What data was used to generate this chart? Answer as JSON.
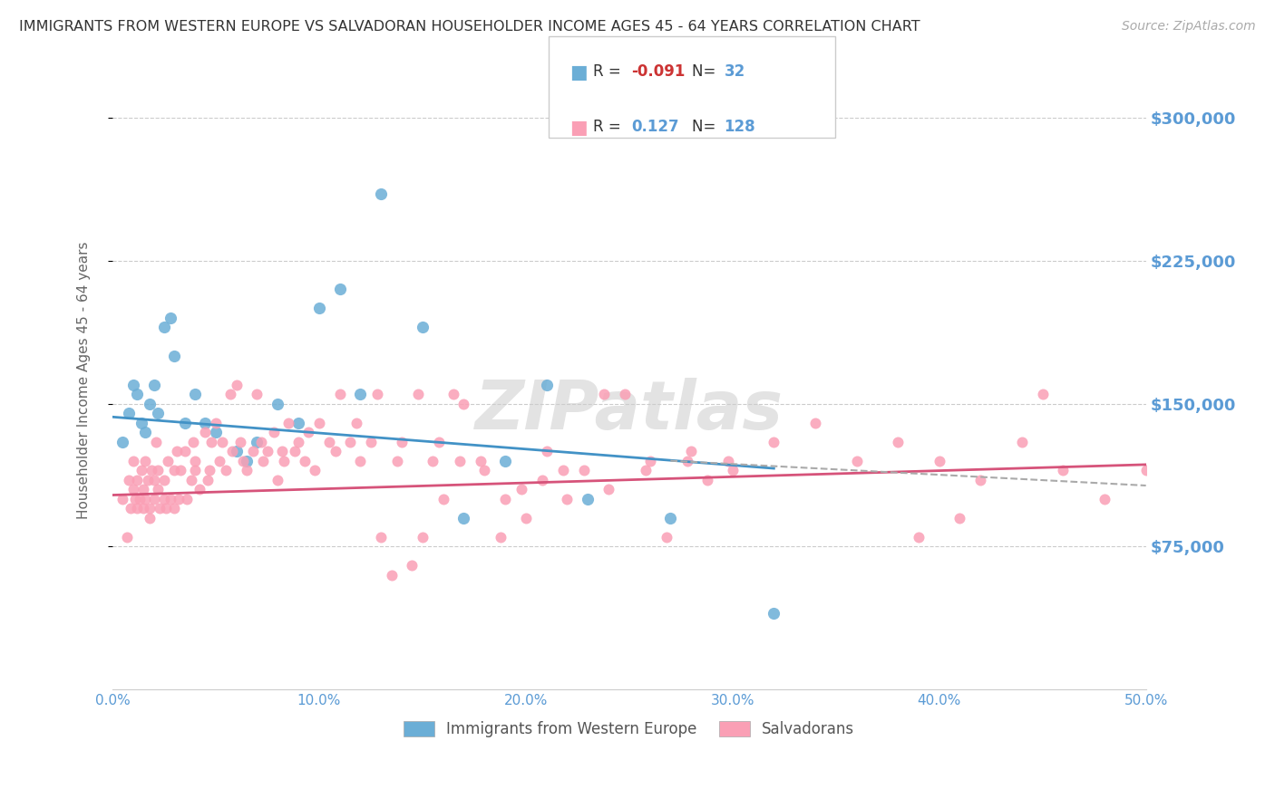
{
  "title": "IMMIGRANTS FROM WESTERN EUROPE VS SALVADORAN HOUSEHOLDER INCOME AGES 45 - 64 YEARS CORRELATION CHART",
  "source": "Source: ZipAtlas.com",
  "ylabel": "Householder Income Ages 45 - 64 years",
  "xlim": [
    0.0,
    0.5
  ],
  "ylim": [
    0,
    325000
  ],
  "yticks": [
    75000,
    150000,
    225000,
    300000
  ],
  "ytick_labels": [
    "$75,000",
    "$150,000",
    "$225,000",
    "$300,000"
  ],
  "xticks": [
    0.0,
    0.1,
    0.2,
    0.3,
    0.4,
    0.5
  ],
  "xtick_labels": [
    "0.0%",
    "10.0%",
    "20.0%",
    "30.0%",
    "40.0%",
    "50.0%"
  ],
  "blue_color": "#6baed6",
  "pink_color": "#fa9fb5",
  "blue_R": -0.091,
  "blue_N": 32,
  "pink_R": 0.127,
  "pink_N": 128,
  "trend_blue_color": "#4292c6",
  "trend_pink_color": "#d6537a",
  "dashed_color": "#aaaaaa",
  "axis_color": "#5b9bd5",
  "watermark": "ZIPatlas",
  "legend_label_blue": "Immigrants from Western Europe",
  "legend_label_pink": "Salvadorans",
  "blue_scatter_x": [
    0.005,
    0.008,
    0.01,
    0.012,
    0.014,
    0.016,
    0.018,
    0.02,
    0.022,
    0.025,
    0.028,
    0.03,
    0.035,
    0.04,
    0.045,
    0.05,
    0.06,
    0.065,
    0.07,
    0.08,
    0.09,
    0.1,
    0.11,
    0.12,
    0.13,
    0.15,
    0.17,
    0.19,
    0.21,
    0.23,
    0.27,
    0.32
  ],
  "blue_scatter_y": [
    130000,
    145000,
    160000,
    155000,
    140000,
    135000,
    150000,
    160000,
    145000,
    190000,
    195000,
    175000,
    140000,
    155000,
    140000,
    135000,
    125000,
    120000,
    130000,
    150000,
    140000,
    200000,
    210000,
    155000,
    260000,
    190000,
    90000,
    120000,
    160000,
    100000,
    90000,
    40000
  ],
  "pink_scatter_x": [
    0.005,
    0.007,
    0.008,
    0.009,
    0.01,
    0.01,
    0.011,
    0.012,
    0.012,
    0.013,
    0.014,
    0.015,
    0.015,
    0.016,
    0.016,
    0.017,
    0.018,
    0.018,
    0.019,
    0.02,
    0.02,
    0.021,
    0.022,
    0.022,
    0.023,
    0.025,
    0.025,
    0.026,
    0.027,
    0.028,
    0.03,
    0.03,
    0.031,
    0.032,
    0.033,
    0.035,
    0.036,
    0.038,
    0.039,
    0.04,
    0.04,
    0.042,
    0.045,
    0.046,
    0.047,
    0.048,
    0.05,
    0.052,
    0.053,
    0.055,
    0.057,
    0.058,
    0.06,
    0.062,
    0.063,
    0.065,
    0.068,
    0.07,
    0.072,
    0.073,
    0.075,
    0.078,
    0.08,
    0.082,
    0.083,
    0.085,
    0.088,
    0.09,
    0.093,
    0.095,
    0.098,
    0.1,
    0.105,
    0.108,
    0.11,
    0.115,
    0.118,
    0.12,
    0.125,
    0.128,
    0.13,
    0.135,
    0.138,
    0.14,
    0.145,
    0.148,
    0.15,
    0.155,
    0.158,
    0.16,
    0.165,
    0.168,
    0.17,
    0.178,
    0.18,
    0.188,
    0.19,
    0.198,
    0.2,
    0.208,
    0.21,
    0.218,
    0.22,
    0.228,
    0.238,
    0.24,
    0.248,
    0.258,
    0.26,
    0.268,
    0.278,
    0.28,
    0.288,
    0.298,
    0.3,
    0.32,
    0.34,
    0.36,
    0.38,
    0.4,
    0.42,
    0.44,
    0.46,
    0.48,
    0.5,
    0.39,
    0.41,
    0.45
  ],
  "pink_scatter_y": [
    100000,
    80000,
    110000,
    95000,
    105000,
    120000,
    100000,
    110000,
    95000,
    100000,
    115000,
    95000,
    105000,
    120000,
    100000,
    110000,
    90000,
    95000,
    115000,
    100000,
    110000,
    130000,
    105000,
    115000,
    95000,
    100000,
    110000,
    95000,
    120000,
    100000,
    115000,
    95000,
    125000,
    100000,
    115000,
    125000,
    100000,
    110000,
    130000,
    115000,
    120000,
    105000,
    135000,
    110000,
    115000,
    130000,
    140000,
    120000,
    130000,
    115000,
    155000,
    125000,
    160000,
    130000,
    120000,
    115000,
    125000,
    155000,
    130000,
    120000,
    125000,
    135000,
    110000,
    125000,
    120000,
    140000,
    125000,
    130000,
    120000,
    135000,
    115000,
    140000,
    130000,
    125000,
    155000,
    130000,
    140000,
    120000,
    130000,
    155000,
    80000,
    60000,
    120000,
    130000,
    65000,
    155000,
    80000,
    120000,
    130000,
    100000,
    155000,
    120000,
    150000,
    120000,
    115000,
    80000,
    100000,
    105000,
    90000,
    110000,
    125000,
    115000,
    100000,
    115000,
    155000,
    105000,
    155000,
    115000,
    120000,
    80000,
    120000,
    125000,
    110000,
    120000,
    115000,
    130000,
    140000,
    120000,
    130000,
    120000,
    110000,
    130000,
    115000,
    100000,
    115000,
    80000,
    90000,
    155000
  ]
}
